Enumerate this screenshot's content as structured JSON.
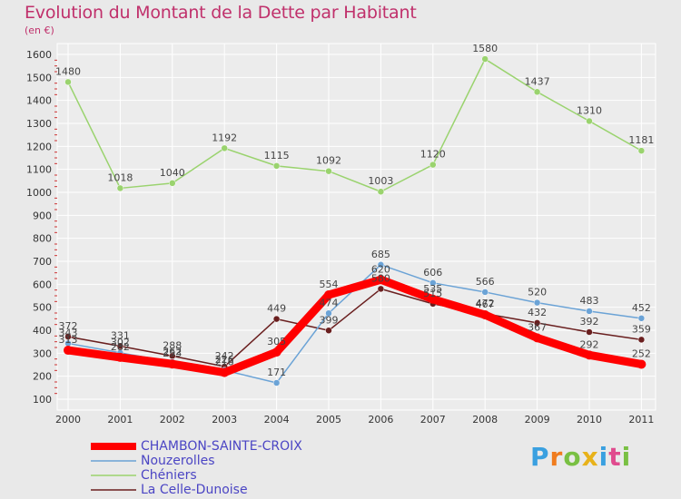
{
  "title": "Evolution du Montant de la Dette par Habitant",
  "unit": "(en €)",
  "logo": "Proxiti",
  "chart_data": {
    "type": "line",
    "title": "Evolution du Montant de la Dette par Habitant",
    "xlabel": "",
    "ylabel": "(en €)",
    "categories": [
      "2000",
      "2001",
      "2002",
      "2003",
      "2004",
      "2005",
      "2006",
      "2007",
      "2008",
      "2009",
      "2010",
      "2011"
    ],
    "ylim": [
      100,
      1600
    ],
    "yticks": [
      100,
      200,
      300,
      400,
      500,
      600,
      700,
      800,
      900,
      1000,
      1100,
      1200,
      1300,
      1400,
      1500,
      1600
    ],
    "grid": true,
    "legend_position": "bottom-left",
    "series": [
      {
        "name": "CHAMBON-SAINTE-CROIX",
        "color": "#ff0000",
        "values": [
          313,
          282,
          253,
          216,
          305,
          554,
          620,
          535,
          467,
          367,
          292,
          252
        ]
      },
      {
        "name": "Nouzerolles",
        "color": "#6ba3d6",
        "values": [
          343,
          302,
          262,
          226,
          171,
          474,
          685,
          606,
          566,
          520,
          483,
          452
        ]
      },
      {
        "name": "Chéniers",
        "color": "#9ad36e",
        "values": [
          1480,
          1018,
          1040,
          1192,
          1115,
          1092,
          1003,
          1120,
          1580,
          1437,
          1310,
          1181
        ]
      },
      {
        "name": "La Celle-Dunoise",
        "color": "#6a1f1f",
        "values": [
          372,
          331,
          288,
          242,
          449,
          399,
          580,
          515,
          472,
          432,
          392,
          359
        ]
      }
    ]
  }
}
